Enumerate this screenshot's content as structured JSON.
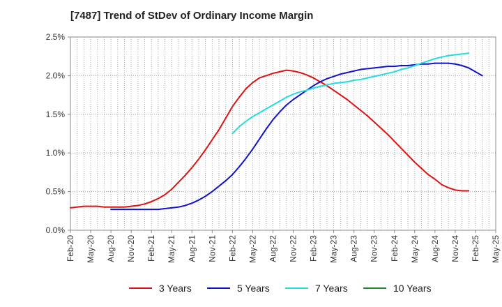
{
  "chart_data": {
    "type": "line",
    "title": "[7487]  Trend of StDev of Ordinary Income Margin",
    "xlabel": "",
    "ylabel": "",
    "x_ticks": [
      "Feb-20",
      "May-20",
      "Aug-20",
      "Nov-20",
      "Feb-21",
      "May-21",
      "Aug-21",
      "Nov-21",
      "Feb-22",
      "May-22",
      "Aug-22",
      "Nov-22",
      "Feb-23",
      "May-23",
      "Aug-23",
      "Nov-23",
      "Feb-24",
      "May-24",
      "Aug-24",
      "Nov-24",
      "Feb-25",
      "May-25"
    ],
    "y_ticks": [
      "0.0%",
      "0.5%",
      "1.0%",
      "1.5%",
      "2.0%",
      "2.5%"
    ],
    "ylim": [
      0,
      2.5
    ],
    "y_unit": "%",
    "grid": true,
    "legend_position": "bottom",
    "series": [
      {
        "name": "3 Years",
        "color": "#dd1111",
        "start_index": 0,
        "values": [
          0.29,
          0.3,
          0.31,
          0.31,
          0.31,
          0.3,
          0.3,
          0.3,
          0.3,
          0.31,
          0.32,
          0.34,
          0.37,
          0.41,
          0.46,
          0.53,
          0.62,
          0.71,
          0.81,
          0.92,
          1.04,
          1.17,
          1.3,
          1.45,
          1.6,
          1.72,
          1.83,
          1.91,
          1.97,
          2.0,
          2.03,
          2.05,
          2.07,
          2.06,
          2.04,
          2.01,
          1.97,
          1.92,
          1.87,
          1.81,
          1.75,
          1.69,
          1.62,
          1.55,
          1.48,
          1.4,
          1.32,
          1.24,
          1.15,
          1.06,
          0.97,
          0.88,
          0.8,
          0.72,
          0.66,
          0.59,
          0.55,
          0.52,
          0.51,
          0.51
        ]
      },
      {
        "name": "5 Years",
        "color": "#1111cc",
        "start_index": 6,
        "values": [
          0.27,
          0.27,
          0.27,
          0.27,
          0.27,
          0.27,
          0.27,
          0.27,
          0.28,
          0.29,
          0.3,
          0.32,
          0.35,
          0.39,
          0.44,
          0.5,
          0.57,
          0.64,
          0.72,
          0.82,
          0.93,
          1.05,
          1.18,
          1.31,
          1.43,
          1.53,
          1.62,
          1.69,
          1.75,
          1.81,
          1.87,
          1.92,
          1.96,
          1.99,
          2.02,
          2.04,
          2.06,
          2.08,
          2.09,
          2.1,
          2.11,
          2.12,
          2.12,
          2.13,
          2.13,
          2.14,
          2.15,
          2.15,
          2.16,
          2.16,
          2.16,
          2.15,
          2.13,
          2.1,
          2.05,
          2.0
        ]
      },
      {
        "name": "7 Years",
        "color": "#22dddd",
        "start_index": 24,
        "values": [
          1.25,
          1.34,
          1.41,
          1.47,
          1.52,
          1.57,
          1.62,
          1.67,
          1.72,
          1.76,
          1.79,
          1.81,
          1.84,
          1.86,
          1.88,
          1.9,
          1.91,
          1.92,
          1.94,
          1.95,
          1.97,
          1.99,
          2.01,
          2.03,
          2.05,
          2.08,
          2.1,
          2.13,
          2.16,
          2.19,
          2.22,
          2.24,
          2.26,
          2.27,
          2.28,
          2.29
        ]
      },
      {
        "name": "10 Years",
        "color": "#228822",
        "start_index": 0,
        "values": []
      }
    ]
  }
}
